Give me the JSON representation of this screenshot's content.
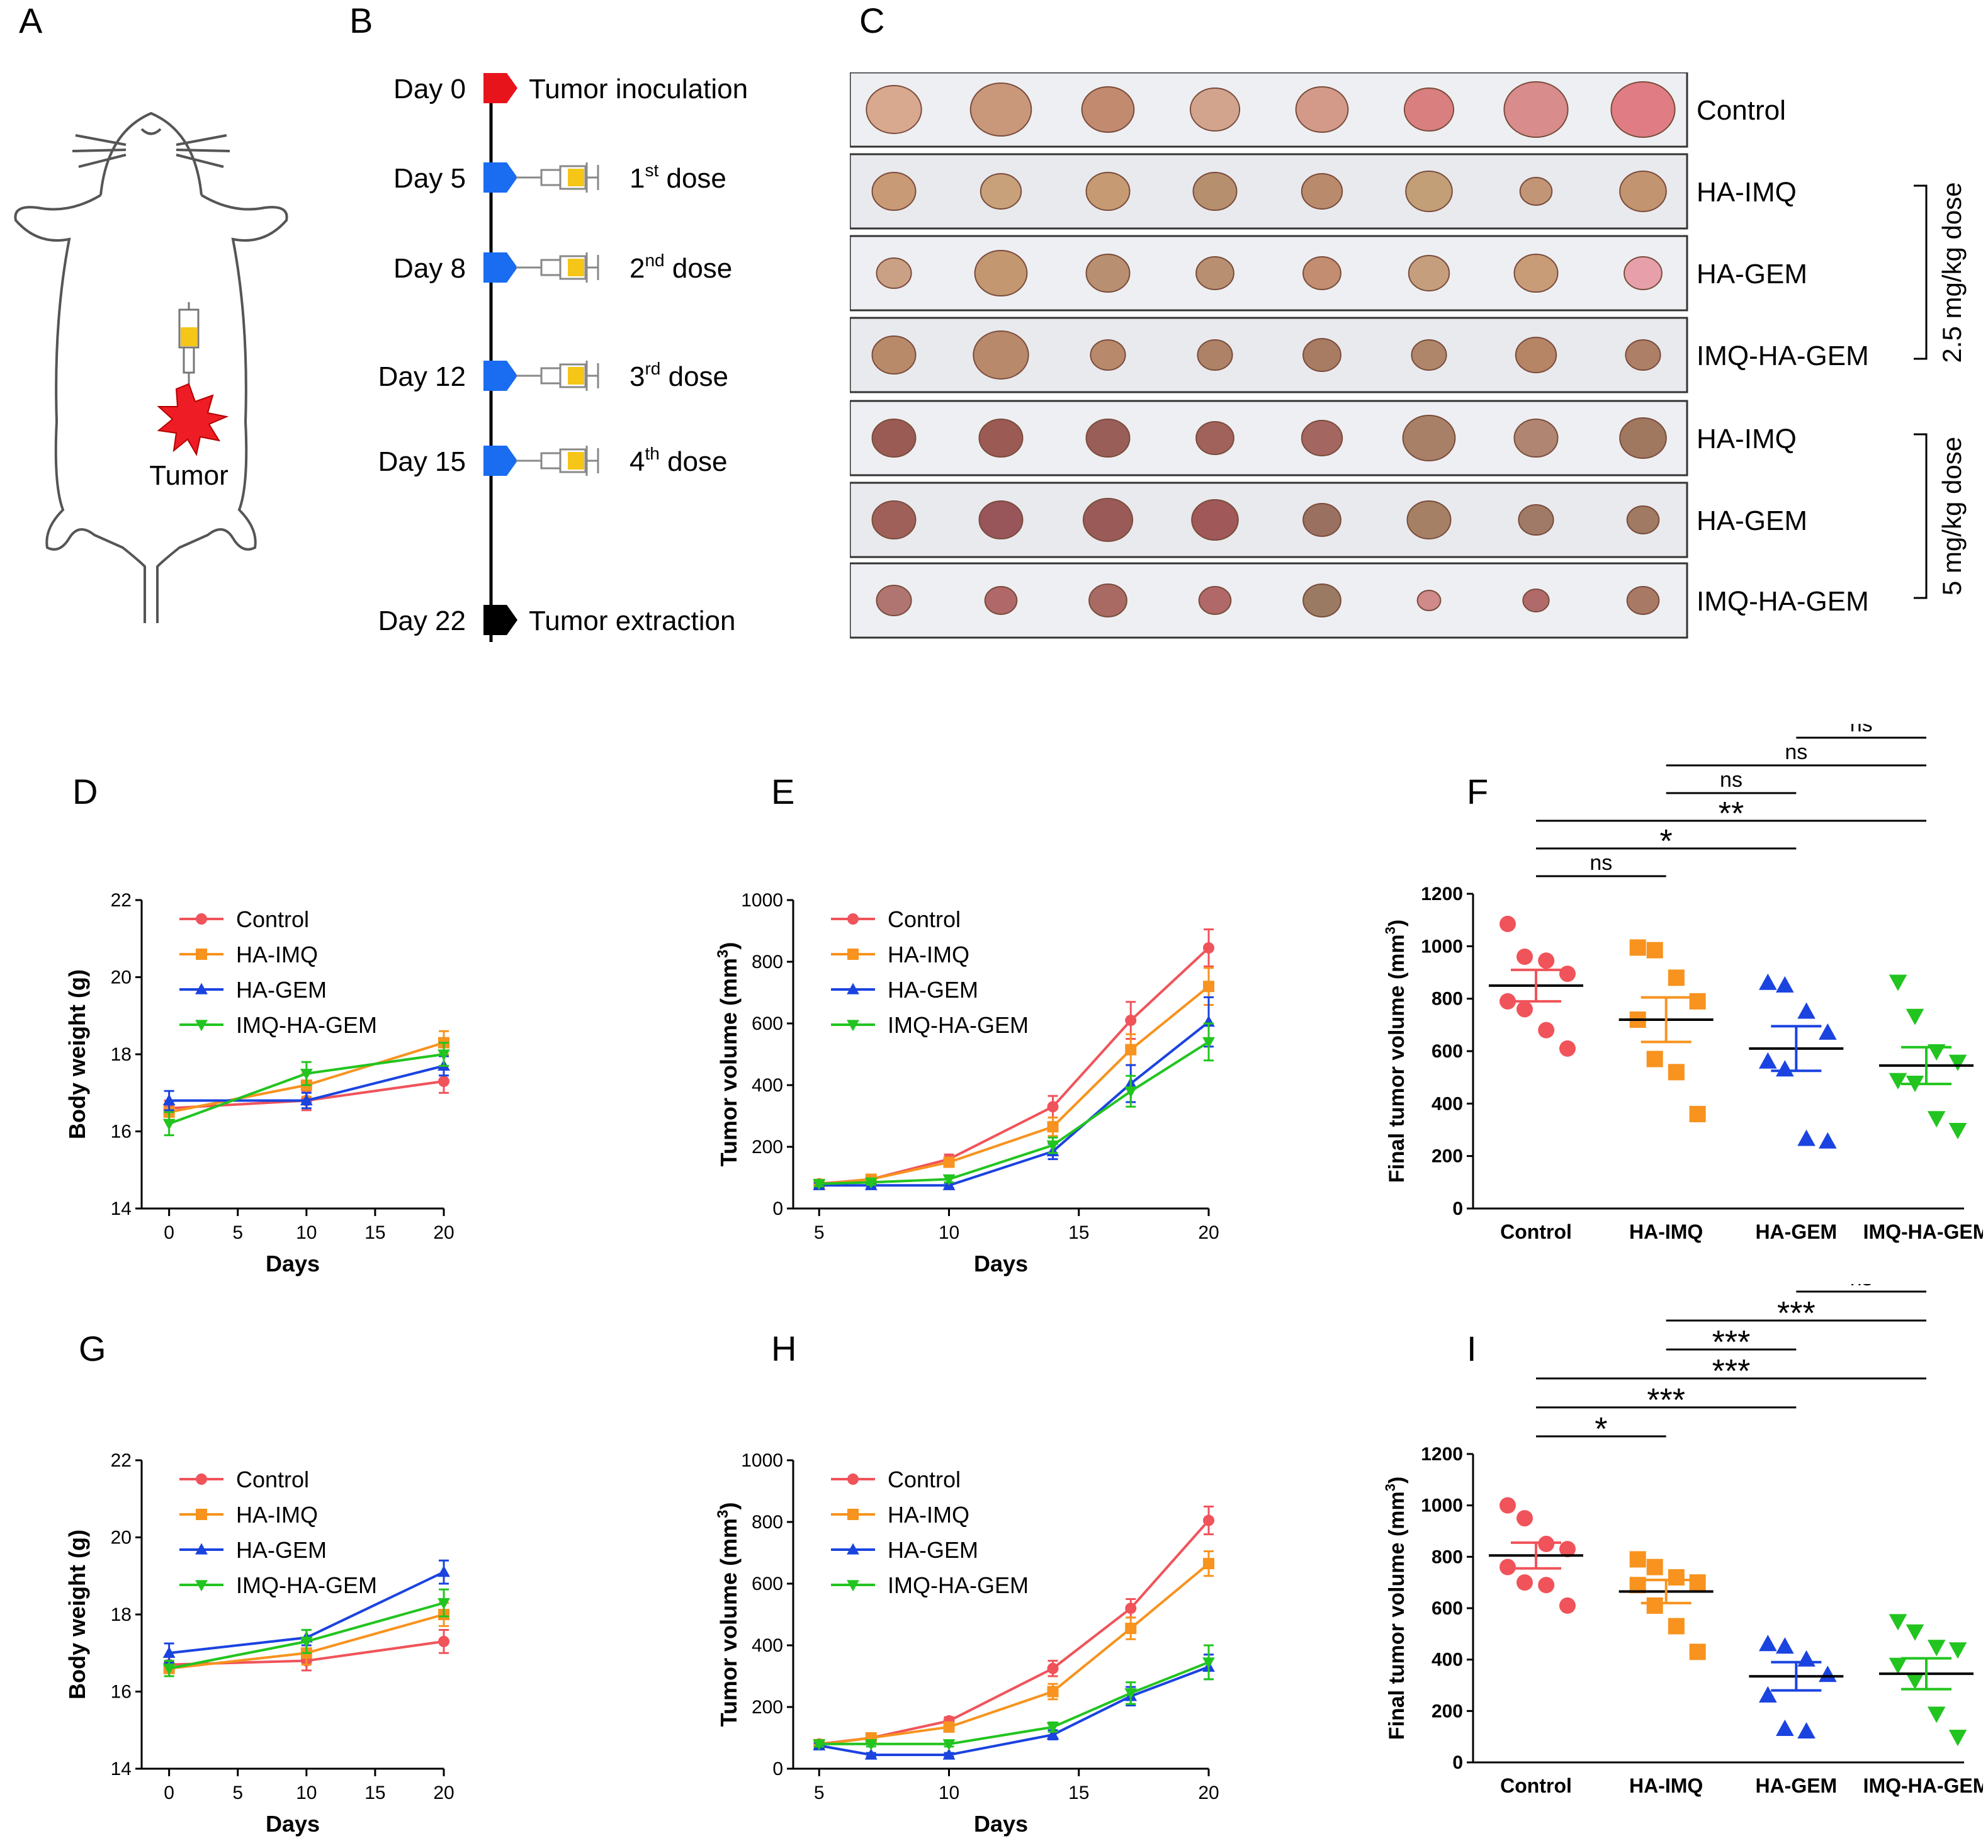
{
  "panels": {
    "A": {
      "letter": "A",
      "tumor_label": "Tumor"
    },
    "B": {
      "letter": "B",
      "events": [
        {
          "day": "Day 0",
          "label": "Tumor inoculation",
          "marker": "red-arrow"
        },
        {
          "day": "Day 5",
          "label": "1",
          "sup": "st",
          "rest": " dose",
          "marker": "blue-arrow"
        },
        {
          "day": "Day 8",
          "label": "2",
          "sup": "nd",
          "rest": " dose",
          "marker": "blue-arrow"
        },
        {
          "day": "Day 12",
          "label": "3",
          "sup": "rd",
          "rest": " dose",
          "marker": "blue-arrow"
        },
        {
          "day": "Day 15",
          "label": "4",
          "sup": "th",
          "rest": " dose",
          "marker": "blue-arrow"
        },
        {
          "day": "Day 22",
          "label": "Tumor extraction",
          "marker": "black-arrow"
        }
      ]
    },
    "C": {
      "letter": "C",
      "rows": [
        "Control",
        "HA-IMQ",
        "HA-GEM",
        "IMQ-HA-GEM",
        "HA-IMQ",
        "HA-GEM",
        "IMQ-HA-GEM"
      ],
      "dose_low": "2.5 mg/kg dose",
      "dose_high": "5 mg/kg dose",
      "tumors_per_row": 8
    },
    "D": {
      "letter": "D"
    },
    "E": {
      "letter": "E"
    },
    "F": {
      "letter": "F"
    },
    "G": {
      "letter": "G"
    },
    "H": {
      "letter": "H"
    },
    "I": {
      "letter": "I"
    }
  },
  "colors": {
    "Control": "#f0535a",
    "HA-IMQ": "#f7931e",
    "HA-GEM": "#1a43e0",
    "IMQ-HA-GEM": "#22c41f"
  },
  "chart_data": [
    {
      "id": "D",
      "type": "line",
      "xlabel": "Days",
      "ylabel": "Body weight (g)",
      "xlim": [
        -2,
        20
      ],
      "ylim": [
        14,
        22
      ],
      "xticks": [
        0,
        5,
        10,
        15,
        20
      ],
      "yticks": [
        14,
        16,
        18,
        20,
        22
      ],
      "legend_position": "top-left",
      "series": [
        {
          "name": "Control",
          "marker": "circle",
          "x": [
            0,
            10,
            20
          ],
          "values": [
            16.6,
            16.8,
            17.3
          ],
          "err": [
            0.2,
            0.25,
            0.3
          ]
        },
        {
          "name": "HA-IMQ",
          "marker": "square",
          "x": [
            0,
            10,
            20
          ],
          "values": [
            16.5,
            17.2,
            18.3
          ],
          "err": [
            0.2,
            0.3,
            0.3
          ]
        },
        {
          "name": "HA-GEM",
          "marker": "triangle-up",
          "x": [
            0,
            10,
            20
          ],
          "values": [
            16.8,
            16.8,
            17.7
          ],
          "err": [
            0.25,
            0.2,
            0.25
          ]
        },
        {
          "name": "IMQ-HA-GEM",
          "marker": "triangle-down",
          "x": [
            0,
            10,
            20
          ],
          "values": [
            16.2,
            17.5,
            18.0
          ],
          "err": [
            0.3,
            0.3,
            0.3
          ]
        }
      ]
    },
    {
      "id": "E",
      "type": "line",
      "xlabel": "Days",
      "ylabel": "Tumor volume (mm3)",
      "xlim": [
        4,
        20
      ],
      "ylim": [
        0,
        1000
      ],
      "xticks": [
        5,
        10,
        15,
        20
      ],
      "yticks": [
        0,
        200,
        400,
        600,
        800,
        1000
      ],
      "legend_position": "top-left",
      "series": [
        {
          "name": "Control",
          "marker": "circle",
          "x": [
            5,
            7,
            10,
            14,
            17,
            20
          ],
          "values": [
            80,
            95,
            160,
            330,
            610,
            845
          ],
          "err": [
            8,
            10,
            15,
            35,
            60,
            60
          ]
        },
        {
          "name": "HA-IMQ",
          "marker": "square",
          "x": [
            5,
            7,
            10,
            14,
            17,
            20
          ],
          "values": [
            78,
            95,
            150,
            265,
            515,
            720
          ],
          "err": [
            8,
            10,
            15,
            30,
            50,
            60
          ]
        },
        {
          "name": "HA-GEM",
          "marker": "triangle-up",
          "x": [
            5,
            7,
            10,
            14,
            17,
            20
          ],
          "values": [
            75,
            75,
            75,
            185,
            405,
            605
          ],
          "err": [
            8,
            8,
            8,
            25,
            60,
            80
          ]
        },
        {
          "name": "IMQ-HA-GEM",
          "marker": "triangle-down",
          "x": [
            5,
            7,
            10,
            14,
            17,
            20
          ],
          "values": [
            80,
            85,
            95,
            205,
            380,
            540
          ],
          "err": [
            8,
            8,
            10,
            25,
            50,
            60
          ]
        }
      ]
    },
    {
      "id": "F",
      "type": "scatter",
      "ylabel": "Final tumor volume (mm3)",
      "ylim": [
        0,
        1200
      ],
      "yticks": [
        0,
        200,
        400,
        600,
        800,
        1000,
        1200
      ],
      "categories": [
        "Control",
        "HA-IMQ",
        "HA-GEM",
        "IMQ-HA-GEM"
      ],
      "groups": [
        {
          "name": "Control",
          "marker": "circle",
          "points": [
            1085,
            960,
            945,
            895,
            790,
            760,
            680,
            610
          ],
          "mean": 850,
          "sem": 60
        },
        {
          "name": "HA-IMQ",
          "marker": "square",
          "points": [
            995,
            985,
            880,
            790,
            720,
            570,
            520,
            360
          ],
          "mean": 720,
          "sem": 85
        },
        {
          "name": "HA-GEM",
          "marker": "triangle-up",
          "points": [
            860,
            850,
            750,
            670,
            560,
            530,
            265,
            255
          ],
          "mean": 610,
          "sem": 85
        },
        {
          "name": "IMQ-HA-GEM",
          "marker": "triangle-down",
          "points": [
            865,
            735,
            600,
            560,
            490,
            480,
            345,
            300
          ],
          "mean": 545,
          "sem": 70
        }
      ],
      "comparisons": [
        {
          "from": 0,
          "to": 1,
          "label": "ns"
        },
        {
          "from": 0,
          "to": 2,
          "label": "*"
        },
        {
          "from": 0,
          "to": 3,
          "label": "**"
        },
        {
          "from": 1,
          "to": 2,
          "label": "ns"
        },
        {
          "from": 1,
          "to": 3,
          "label": "ns"
        },
        {
          "from": 2,
          "to": 3,
          "label": "ns"
        }
      ]
    },
    {
      "id": "G",
      "type": "line",
      "xlabel": "Days",
      "ylabel": "Body weight (g)",
      "xlim": [
        -2,
        20
      ],
      "ylim": [
        14,
        22
      ],
      "xticks": [
        0,
        5,
        10,
        15,
        20
      ],
      "yticks": [
        14,
        16,
        18,
        20,
        22
      ],
      "legend_position": "top-left",
      "series": [
        {
          "name": "Control",
          "marker": "circle",
          "x": [
            0,
            10,
            20
          ],
          "values": [
            16.7,
            16.8,
            17.3
          ],
          "err": [
            0.2,
            0.25,
            0.3
          ]
        },
        {
          "name": "HA-IMQ",
          "marker": "square",
          "x": [
            0,
            10,
            20
          ],
          "values": [
            16.6,
            17.0,
            18.0
          ],
          "err": [
            0.2,
            0.3,
            0.3
          ]
        },
        {
          "name": "HA-GEM",
          "marker": "triangle-up",
          "x": [
            0,
            10,
            20
          ],
          "values": [
            17.0,
            17.4,
            19.1
          ],
          "err": [
            0.25,
            0.2,
            0.3
          ]
        },
        {
          "name": "IMQ-HA-GEM",
          "marker": "triangle-down",
          "x": [
            0,
            10,
            20
          ],
          "values": [
            16.6,
            17.3,
            18.3
          ],
          "err": [
            0.2,
            0.3,
            0.35
          ]
        }
      ]
    },
    {
      "id": "H",
      "type": "line",
      "xlabel": "Days",
      "ylabel": "Tumor volume (mm3)",
      "xlim": [
        4,
        20
      ],
      "ylim": [
        0,
        1000
      ],
      "xticks": [
        5,
        10,
        15,
        20
      ],
      "yticks": [
        0,
        200,
        400,
        600,
        800,
        1000
      ],
      "legend_position": "top-left",
      "series": [
        {
          "name": "Control",
          "marker": "circle",
          "x": [
            5,
            7,
            10,
            14,
            17,
            20
          ],
          "values": [
            80,
            100,
            155,
            325,
            520,
            805
          ],
          "err": [
            8,
            10,
            12,
            25,
            30,
            45
          ]
        },
        {
          "name": "HA-IMQ",
          "marker": "square",
          "x": [
            5,
            7,
            10,
            14,
            17,
            20
          ],
          "values": [
            78,
            100,
            135,
            250,
            455,
            665
          ],
          "err": [
            8,
            10,
            12,
            25,
            35,
            40
          ]
        },
        {
          "name": "HA-GEM",
          "marker": "triangle-up",
          "x": [
            5,
            7,
            10,
            14,
            17,
            20
          ],
          "values": [
            75,
            45,
            45,
            110,
            235,
            330
          ],
          "err": [
            8,
            6,
            6,
            15,
            30,
            40
          ]
        },
        {
          "name": "IMQ-HA-GEM",
          "marker": "triangle-down",
          "x": [
            5,
            7,
            10,
            14,
            17,
            20
          ],
          "values": [
            80,
            80,
            80,
            135,
            245,
            345
          ],
          "err": [
            8,
            8,
            8,
            15,
            35,
            55
          ]
        }
      ]
    },
    {
      "id": "I",
      "type": "scatter",
      "ylabel": "Final tumor volume (mm3)",
      "ylim": [
        0,
        1200
      ],
      "yticks": [
        0,
        200,
        400,
        600,
        800,
        1000,
        1200
      ],
      "categories": [
        "Control",
        "HA-IMQ",
        "HA-GEM",
        "IMQ-HA-GEM"
      ],
      "groups": [
        {
          "name": "Control",
          "marker": "circle",
          "points": [
            1000,
            950,
            850,
            830,
            760,
            700,
            690,
            610
          ],
          "mean": 805,
          "sem": 50
        },
        {
          "name": "HA-IMQ",
          "marker": "square",
          "points": [
            790,
            760,
            720,
            700,
            690,
            610,
            530,
            430
          ],
          "mean": 665,
          "sem": 45
        },
        {
          "name": "HA-GEM",
          "marker": "triangle-up",
          "points": [
            460,
            450,
            400,
            340,
            260,
            130,
            120
          ],
          "mean": 335,
          "sem": 55
        },
        {
          "name": "IMQ-HA-GEM",
          "marker": "triangle-down",
          "points": [
            550,
            510,
            450,
            440,
            380,
            320,
            190,
            100
          ],
          "mean": 345,
          "sem": 60
        }
      ],
      "comparisons": [
        {
          "from": 0,
          "to": 1,
          "label": "*"
        },
        {
          "from": 0,
          "to": 2,
          "label": "***"
        },
        {
          "from": 0,
          "to": 3,
          "label": "***"
        },
        {
          "from": 1,
          "to": 2,
          "label": "***"
        },
        {
          "from": 1,
          "to": 3,
          "label": "***"
        },
        {
          "from": 2,
          "to": 3,
          "label": "ns"
        }
      ]
    }
  ]
}
